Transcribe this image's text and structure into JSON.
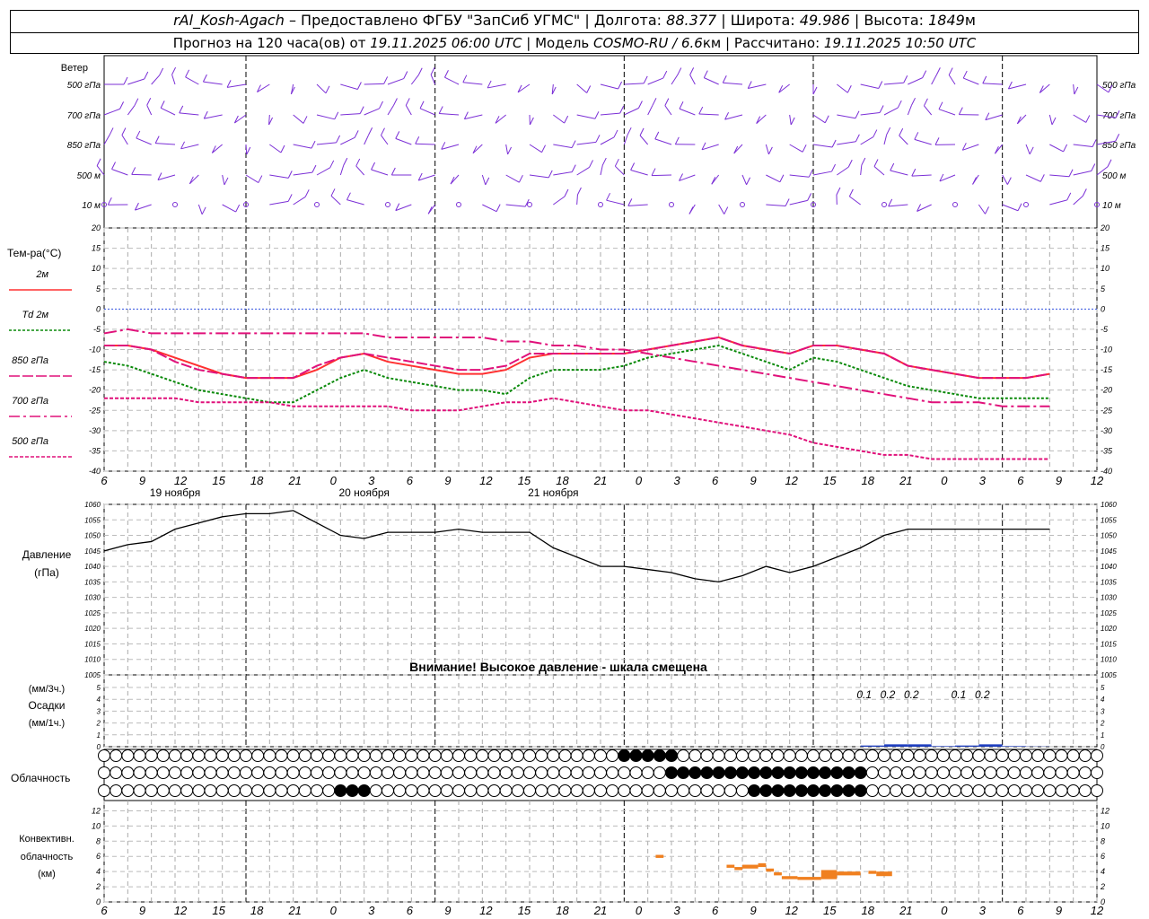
{
  "header": {
    "station": "rAl_Kosh-Agach",
    "provider": "Предоставлено ФГБУ \"ЗапСиб УГМС\"",
    "lon_label": "Долгота:",
    "lon": "88.377",
    "lat_label": "Широта:",
    "lat": "49.986",
    "alt_label": "Высота:",
    "alt": "1849",
    "alt_unit": "м",
    "forecast_prefix": "Прогноз на 120 часа(ов) от",
    "forecast_start": "19.11.2025 06:00 UTC",
    "model_label": "Модель",
    "model": "COSMO-RU / 6.6",
    "model_unit": "км",
    "calc_label": "Рассчитано:",
    "calc_time": "19.11.2025 10:50 UTC"
  },
  "wind_panel": {
    "title": "Ветер",
    "levels": [
      "500 гПа",
      "700 гПа",
      "850 гПа",
      "500  м",
      "10  м"
    ]
  },
  "temp_panel": {
    "title": "Тем-ра(°С)",
    "legend": [
      {
        "label": "2м",
        "color": "#ff3030"
      },
      {
        "label": "Td  2м",
        "color": "#0a8a0a"
      },
      {
        "label": "850 гПа",
        "color": "#e0107a"
      },
      {
        "label": "700 гПа",
        "color": "#e0107a"
      },
      {
        "label": "500 гПа",
        "color": "#e0107a"
      }
    ]
  },
  "pressure_panel": {
    "title": "Давление",
    "unit": "(гПа)",
    "warning": "Внимание! Высокое давление - шкала смещена"
  },
  "precip_panel": {
    "unit3": "(мм/3ч.)",
    "title": "Осадки",
    "unit1": "(мм/1ч.)",
    "ticks": [
      "0",
      "1",
      "2",
      "3",
      "4",
      "5"
    ],
    "labels": [
      "0.1",
      "0.2",
      "0.2",
      "0.1",
      "0.2"
    ]
  },
  "cloud_panel": {
    "title": "Облачность"
  },
  "conv_panel": {
    "title1": "Конвективн.",
    "title2": "облачность",
    "unit": "(км)",
    "ticks": [
      "0",
      "2",
      "4",
      "6",
      "8",
      "10",
      "12"
    ]
  },
  "time_axis": {
    "hour_labels": [
      "6",
      "9",
      "12",
      "15",
      "18",
      "21",
      "0",
      "3",
      "6",
      "9",
      "12",
      "15",
      "18",
      "21",
      "0",
      "3",
      "6",
      "9",
      "12",
      "15",
      "18",
      "21",
      "0",
      "3",
      "6",
      "9",
      "12"
    ],
    "day_labels": [
      "19 ноября",
      "20 ноября",
      "21 ноября"
    ]
  },
  "chart_data": [
    {
      "type": "line",
      "title": "Тем-ра(°С)",
      "ylim": [
        -40,
        20
      ],
      "x_hours": [
        0,
        3,
        6,
        9,
        12,
        15,
        18,
        21,
        24,
        27,
        30,
        33,
        36,
        39,
        42,
        45,
        48,
        51,
        54,
        57,
        60,
        63,
        66,
        69,
        72,
        75,
        78,
        81,
        84,
        87,
        90,
        93,
        96,
        99,
        102,
        105,
        108,
        111,
        114,
        117,
        120
      ],
      "series": [
        {
          "name": "2м",
          "color": "#ff3030",
          "values": [
            -9,
            -9,
            -10,
            -12,
            -14,
            -16,
            -17,
            -17,
            -17,
            -15,
            -12,
            -11,
            -13,
            -14,
            -15,
            -16,
            -16,
            -15,
            -12,
            -11,
            -11,
            -11,
            -11,
            -10,
            -9,
            -8,
            -7,
            -9,
            -10,
            -11,
            -9,
            -9,
            -10,
            -11,
            -14,
            -15,
            -16,
            -17,
            -17,
            -17,
            -16
          ]
        },
        {
          "name": "Td  2м",
          "color": "#0a8a0a",
          "values": [
            -13,
            -14,
            -16,
            -18,
            -20,
            -21,
            -22,
            -23,
            -23,
            -20,
            -17,
            -15,
            -17,
            -18,
            -19,
            -20,
            -20,
            -21,
            -17,
            -15,
            -15,
            -15,
            -14,
            -12,
            -11,
            -10,
            -9,
            -11,
            -13,
            -15,
            -12,
            -13,
            -15,
            -17,
            -19,
            -20,
            -21,
            -22,
            -22,
            -22,
            -22
          ]
        },
        {
          "name": "850 гПа",
          "color": "#e0107a",
          "values": [
            -9,
            -9,
            -10,
            -13,
            -15,
            -16,
            -17,
            -17,
            -17,
            -14,
            -12,
            -11,
            -12,
            -13,
            -14,
            -15,
            -15,
            -14,
            -11,
            -11,
            -11,
            -11,
            -11,
            -10,
            -9,
            -8,
            -7,
            -9,
            -10,
            -11,
            -9,
            -9,
            -10,
            -11,
            -14,
            -15,
            -16,
            -17,
            -17,
            -17,
            -16
          ]
        },
        {
          "name": "700 гПа",
          "color": "#e0107a",
          "values": [
            -6,
            -5,
            -6,
            -6,
            -6,
            -6,
            -6,
            -6,
            -6,
            -6,
            -6,
            -6,
            -7,
            -7,
            -7,
            -7,
            -7,
            -8,
            -8,
            -9,
            -9,
            -10,
            -10,
            -11,
            -12,
            -13,
            -14,
            -15,
            -16,
            -17,
            -18,
            -19,
            -20,
            -21,
            -22,
            -23,
            -23,
            -23,
            -24,
            -24,
            -24
          ]
        },
        {
          "name": "500 гПа",
          "color": "#e0107a",
          "values": [
            -22,
            -22,
            -22,
            -22,
            -23,
            -23,
            -23,
            -23,
            -24,
            -24,
            -24,
            -24,
            -24,
            -25,
            -25,
            -25,
            -24,
            -23,
            -23,
            -22,
            -23,
            -24,
            -25,
            -25,
            -26,
            -27,
            -28,
            -29,
            -30,
            -31,
            -33,
            -34,
            -35,
            -36,
            -36,
            -37,
            -37,
            -37,
            -37,
            -37,
            -37
          ]
        }
      ]
    },
    {
      "type": "line",
      "title": "Давление",
      "ylabel": "(гПа)",
      "ylim": [
        1005,
        1060
      ],
      "x_hours": [
        0,
        3,
        6,
        9,
        12,
        15,
        18,
        21,
        24,
        27,
        30,
        33,
        36,
        39,
        42,
        45,
        48,
        51,
        54,
        57,
        60,
        63,
        66,
        69,
        72,
        75,
        78,
        81,
        84,
        87,
        90,
        93,
        96,
        99,
        102,
        105,
        108,
        111,
        114,
        117,
        120
      ],
      "series": [
        {
          "name": "",
          "color": "#000000",
          "values": [
            1045,
            1047,
            1048,
            1052,
            1054,
            1056,
            1057,
            1057,
            1058,
            1054,
            1050,
            1049,
            1051,
            1051,
            1051,
            1052,
            1051,
            1051,
            1051,
            1046,
            1043,
            1040,
            1040,
            1039,
            1038,
            1036,
            1035,
            1037,
            1040,
            1038,
            1040,
            1043,
            1046,
            1050,
            1052,
            1052,
            1052,
            1052,
            1052,
            1052,
            1052
          ]
        }
      ]
    },
    {
      "type": "bar",
      "title": "Осадки",
      "ylabel": "(мм/3ч.)",
      "ylim": [
        0,
        5
      ],
      "x_hours": [
        96,
        99,
        102,
        105,
        108,
        111,
        114,
        117
      ],
      "values": [
        0.1,
        0.2,
        0.2,
        0.05,
        0.1,
        0.2,
        0.05,
        0.02
      ],
      "color": "#2040c0"
    },
    {
      "type": "bar",
      "title": "Конвективн. облачность",
      "ylabel": "(км)",
      "ylim": [
        0,
        13
      ],
      "segments": [
        {
          "h0": 70,
          "h1": 71,
          "lo": 5.8,
          "hi": 6.2
        },
        {
          "h0": 79,
          "h1": 80,
          "lo": 4.5,
          "hi": 4.9
        },
        {
          "h0": 80,
          "h1": 81,
          "lo": 4.2,
          "hi": 4.6
        },
        {
          "h0": 81,
          "h1": 83,
          "lo": 4.4,
          "hi": 4.9
        },
        {
          "h0": 83,
          "h1": 84,
          "lo": 4.6,
          "hi": 5.1
        },
        {
          "h0": 84,
          "h1": 85,
          "lo": 4.0,
          "hi": 4.4
        },
        {
          "h0": 85,
          "h1": 86,
          "lo": 3.5,
          "hi": 3.9
        },
        {
          "h0": 86,
          "h1": 88,
          "lo": 3.0,
          "hi": 3.4
        },
        {
          "h0": 88,
          "h1": 91,
          "lo": 2.9,
          "hi": 3.3
        },
        {
          "h0": 91,
          "h1": 93,
          "lo": 3.0,
          "hi": 4.2
        },
        {
          "h0": 93,
          "h1": 96,
          "lo": 3.5,
          "hi": 4.0
        },
        {
          "h0": 97,
          "h1": 98,
          "lo": 3.7,
          "hi": 4.1
        },
        {
          "h0": 98,
          "h1": 100,
          "lo": 3.4,
          "hi": 4.0
        }
      ],
      "color": "#f08020"
    }
  ]
}
